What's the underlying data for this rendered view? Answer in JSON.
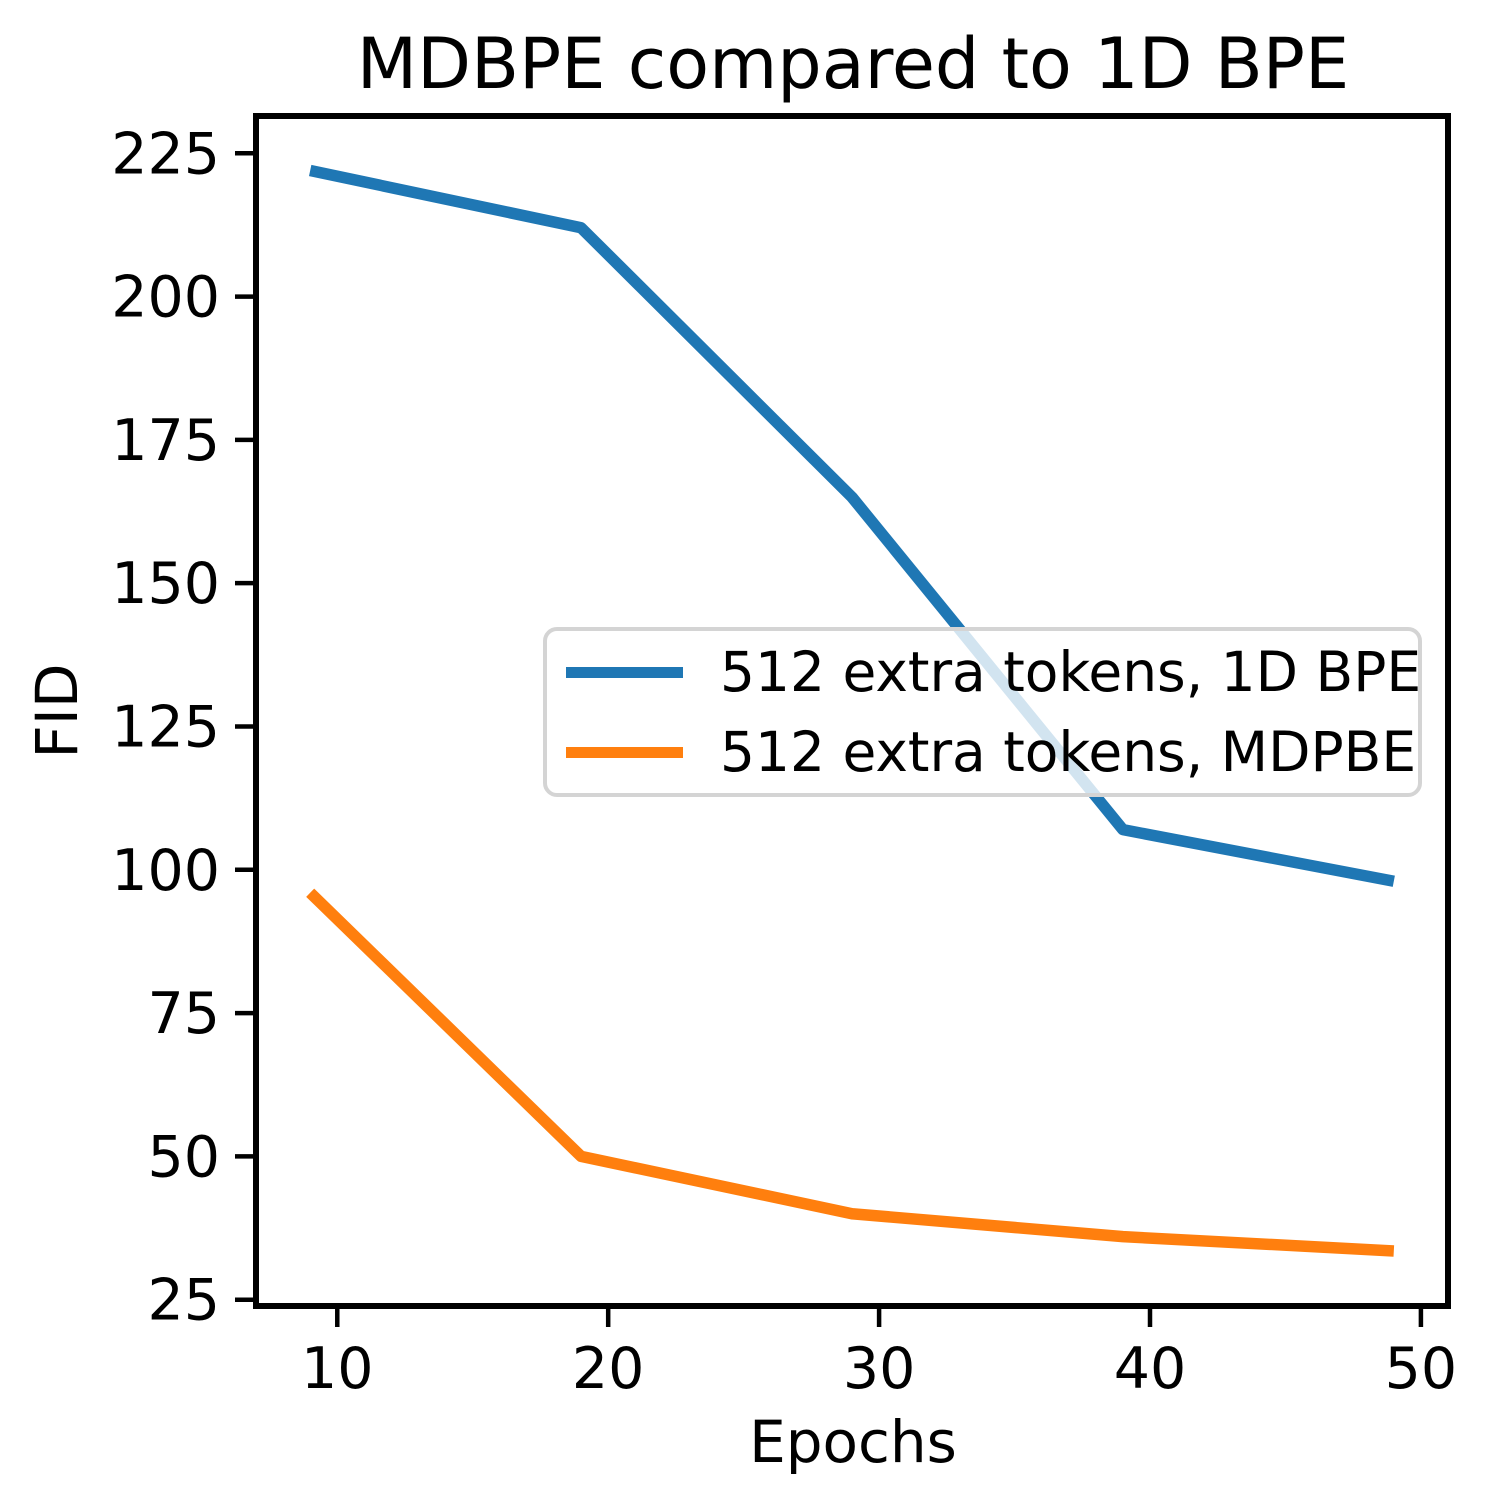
{
  "figure": {
    "title": "MDBPE compared to 1D BPE"
  },
  "chart_data": {
    "type": "line",
    "title": "MDBPE compared to 1D BPE",
    "xlabel": "Epochs",
    "ylabel": "FID",
    "x": [
      9,
      19,
      29,
      39,
      49
    ],
    "series": [
      {
        "name": "512 extra tokens, 1D BPE",
        "color": "#1f77b4",
        "values": [
          222,
          212,
          165,
          107,
          98
        ]
      },
      {
        "name": "512 extra tokens, MDPBE",
        "color": "#ff7f0e",
        "values": [
          96,
          50,
          40,
          36,
          33.5
        ]
      }
    ],
    "xlim": [
      7,
      51
    ],
    "ylim": [
      23.9,
      231.5
    ],
    "xticks": [
      10,
      20,
      30,
      40,
      50
    ],
    "yticks": [
      25,
      50,
      75,
      100,
      125,
      150,
      175,
      200,
      225
    ],
    "grid": false,
    "legend_position": "center",
    "line_width": 11.5,
    "axis_color": "#000000"
  }
}
